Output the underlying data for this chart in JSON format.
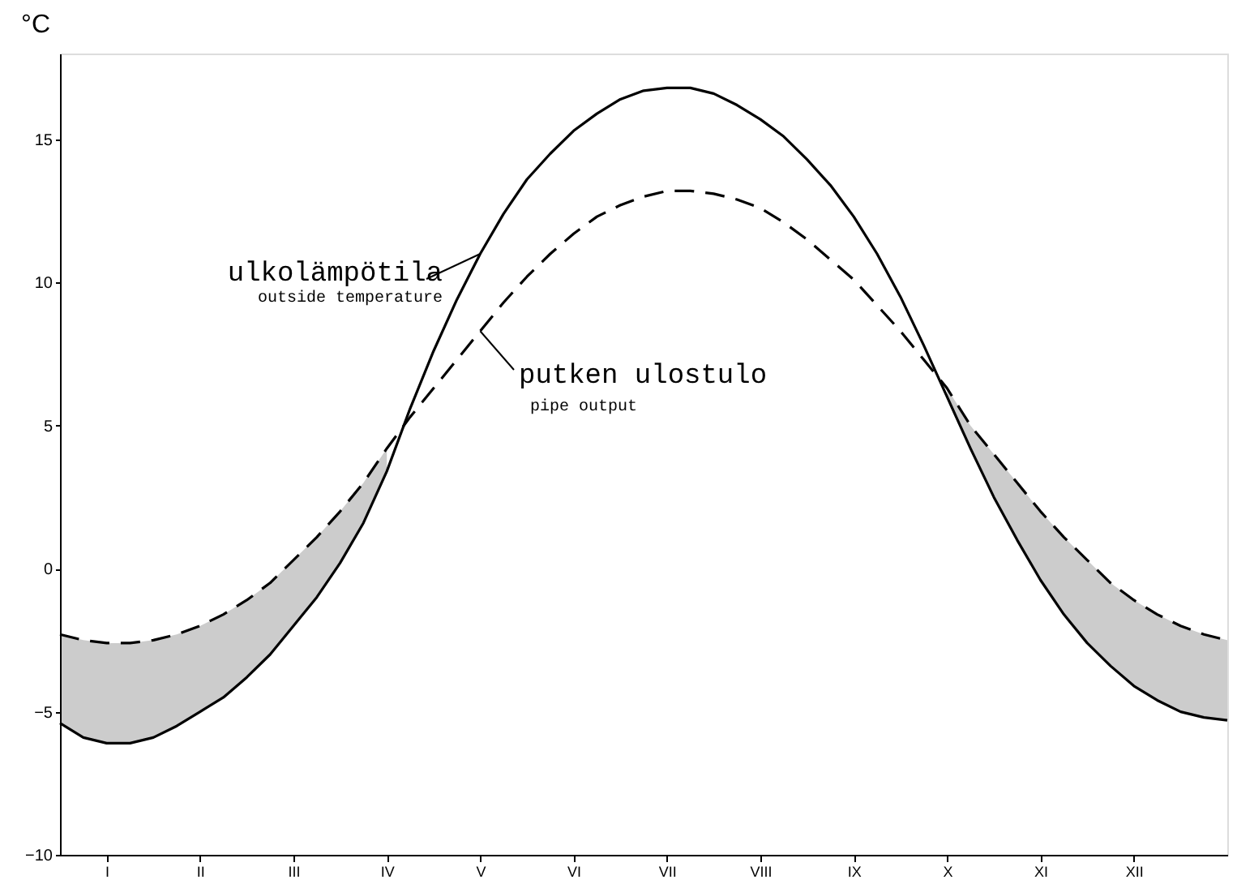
{
  "chart_data": {
    "type": "line",
    "ylabel": "°C",
    "categories": [
      null,
      null,
      "I",
      null,
      null,
      null,
      "II",
      null,
      null,
      null,
      "III",
      null,
      null,
      null,
      "IV",
      null,
      null,
      null,
      "V",
      null,
      null,
      null,
      "VI",
      null,
      null,
      null,
      "VII",
      null,
      null,
      null,
      "VIII",
      null,
      null,
      null,
      "IX",
      null,
      null,
      null,
      "X",
      null,
      null,
      null,
      "XI",
      null,
      null,
      null,
      "XII",
      null,
      null,
      null,
      null
    ],
    "series": [
      {
        "color": "#000000",
        "line_style": "solid",
        "values": [
          -5.4,
          -5.9,
          -6.1,
          -6.1,
          -5.9,
          -5.5,
          -5.0,
          -4.5,
          -3.8,
          -3.0,
          -2.0,
          -1.0,
          0.2,
          1.6,
          3.4,
          5.6,
          7.6,
          9.4,
          11.0,
          12.4,
          13.6,
          14.5,
          15.3,
          15.9,
          16.4,
          16.7,
          16.8,
          16.8,
          16.6,
          16.2,
          15.7,
          15.1,
          14.3,
          13.4,
          12.3,
          11.0,
          9.5,
          7.8,
          6.0,
          4.2,
          2.5,
          1.0,
          -0.4,
          -1.6,
          -2.6,
          -3.4,
          -4.1,
          -4.6,
          -5.0,
          -5.2,
          -5.3
        ]
      },
      {
        "color": "#000000",
        "line_style": "dashed",
        "values": [
          -2.3,
          -2.5,
          -2.6,
          -2.6,
          -2.5,
          -2.3,
          -2.0,
          -1.6,
          -1.1,
          -0.5,
          0.3,
          1.1,
          2.0,
          3.0,
          4.2,
          5.3,
          6.3,
          7.3,
          8.3,
          9.3,
          10.2,
          11.0,
          11.7,
          12.3,
          12.7,
          13.0,
          13.2,
          13.2,
          13.1,
          12.9,
          12.6,
          12.1,
          11.5,
          10.8,
          10.1,
          9.2,
          8.3,
          7.3,
          6.3,
          5.0,
          4.0,
          3.0,
          2.0,
          1.1,
          0.3,
          -0.5,
          -1.1,
          -1.6,
          -2.0,
          -2.3,
          -2.5
        ],
        "lower": [
          -5.4,
          -5.9,
          -6.1,
          -6.1,
          -5.9,
          -5.5,
          -5.0,
          -4.5,
          -3.8,
          -3.0,
          -2.0,
          -1.0,
          0.2,
          1.6,
          3.4,
          null,
          null,
          null,
          null,
          null,
          null,
          null,
          null,
          null,
          null,
          null,
          null,
          null,
          null,
          null,
          null,
          null,
          null,
          null,
          null,
          null,
          null,
          null,
          6.0,
          4.2,
          2.5,
          1.0,
          -0.4,
          -1.6,
          -2.6,
          -3.4,
          -4.1,
          -4.6,
          -5.0,
          -5.2,
          -5.3
        ],
        "upper": [
          -2.3,
          -2.5,
          -2.6,
          -2.6,
          -2.5,
          -2.3,
          -2.0,
          -1.6,
          -1.1,
          -0.5,
          0.3,
          1.1,
          2.0,
          3.0,
          4.2,
          null,
          null,
          null,
          null,
          null,
          null,
          null,
          null,
          null,
          null,
          null,
          null,
          null,
          null,
          null,
          null,
          null,
          null,
          null,
          null,
          null,
          null,
          null,
          6.3,
          5.0,
          4.0,
          3.0,
          2.0,
          1.1,
          0.3,
          -0.5,
          -1.1,
          -1.6,
          -2.0,
          -2.3,
          -2.5
        ]
      }
    ],
    "ylim": [
      -10,
      18
    ],
    "yticks": [
      -10,
      -5,
      0,
      5,
      10,
      15
    ],
    "grid": false,
    "marker": "none",
    "annotations": [
      {
        "text": "ulkolämpötila",
        "x": "V",
        "y": 11.0
      },
      "outside temperature",
      {
        "text": "putken ulostulo",
        "x": "V",
        "y": 8.3
      },
      "pipe output"
    ]
  }
}
